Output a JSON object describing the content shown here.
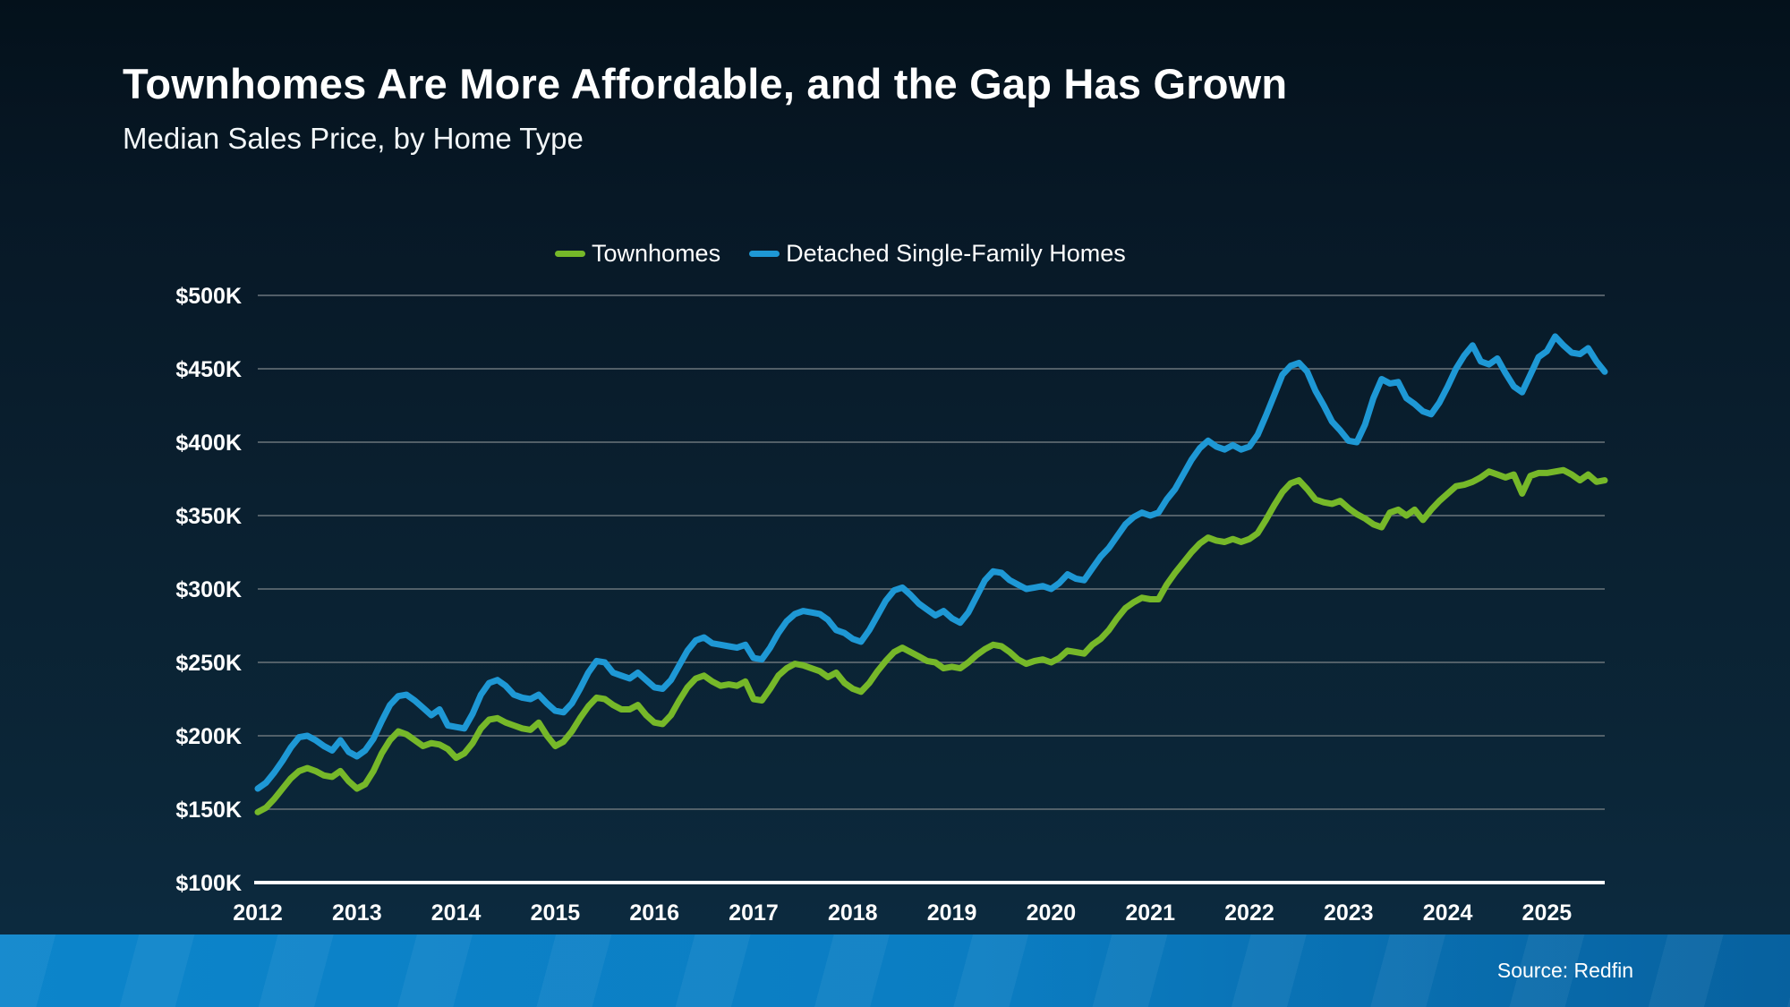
{
  "title": "Townhomes Are More Affordable, and the Gap Has Grown",
  "subtitle": "Median Sales Price, by Home Type",
  "source": "Source: Redfin",
  "colors": {
    "townhomes_green": "#76b829",
    "detached_blue": "#1e98d5",
    "gridline": "#5f6b72",
    "axis_line": "#ffffff",
    "text": "#ffffff",
    "bottom_bar_left": "#0c85cb",
    "bottom_bar_right": "#07619f"
  },
  "legend": {
    "items": [
      {
        "label": "Townhomes",
        "color": "#76b829"
      },
      {
        "label": "Detached Single-Family Homes",
        "color": "#1e98d5"
      }
    ]
  },
  "chart_data": {
    "type": "line",
    "title": "Median Sales Price, by Home Type",
    "frequency": "monthly",
    "x_start": "2012-01",
    "x_end": "2025-08",
    "x_tick_labels": [
      "2012",
      "2013",
      "2014",
      "2015",
      "2016",
      "2017",
      "2018",
      "2019",
      "2020",
      "2021",
      "2022",
      "2023",
      "2024",
      "2025"
    ],
    "y_tick_labels": [
      "$500K",
      "$450K",
      "$400K",
      "$350K",
      "$300K",
      "$250K",
      "$200K",
      "$150K",
      "$100K"
    ],
    "y_tick_values": [
      500,
      450,
      400,
      350,
      300,
      250,
      200,
      150,
      100
    ],
    "ylim": [
      100,
      500
    ],
    "grid": true,
    "legend_position": "top-center",
    "units": "thousands of USD",
    "series": [
      {
        "name": "Townhomes",
        "color": "#76b829",
        "values": [
          148,
          151,
          157,
          164,
          171,
          176,
          178,
          176,
          173,
          172,
          176,
          169,
          164,
          167,
          176,
          188,
          197,
          203,
          201,
          197,
          193,
          195,
          194,
          191,
          185,
          188,
          195,
          205,
          211,
          212,
          209,
          207,
          205,
          204,
          209,
          200,
          193,
          196,
          203,
          212,
          220,
          226,
          225,
          221,
          218,
          218,
          221,
          214,
          209,
          208,
          214,
          224,
          233,
          239,
          241,
          237,
          234,
          235,
          234,
          237,
          225,
          224,
          232,
          241,
          246,
          249,
          248,
          246,
          244,
          240,
          243,
          236,
          232,
          230,
          236,
          244,
          251,
          257,
          260,
          257,
          254,
          251,
          250,
          246,
          247,
          246,
          250,
          255,
          259,
          262,
          261,
          257,
          252,
          249,
          251,
          252,
          250,
          253,
          258,
          257,
          256,
          262,
          266,
          272,
          280,
          287,
          291,
          294,
          293,
          293,
          303,
          311,
          318,
          325,
          331,
          335,
          333,
          332,
          334,
          332,
          334,
          338,
          347,
          357,
          366,
          372,
          374,
          368,
          361,
          359,
          358,
          360,
          355,
          351,
          348,
          344,
          342,
          352,
          354,
          350,
          354,
          347,
          354,
          360,
          365,
          370,
          371,
          373,
          376,
          380,
          378,
          376,
          378,
          365,
          377,
          379,
          379,
          380,
          381,
          378,
          374,
          378,
          373,
          374
        ]
      },
      {
        "name": "Detached Single-Family Homes",
        "color": "#1e98d5",
        "values": [
          164,
          168,
          175,
          183,
          192,
          199,
          200,
          197,
          193,
          190,
          197,
          189,
          186,
          190,
          198,
          210,
          221,
          227,
          228,
          224,
          219,
          214,
          218,
          207,
          206,
          205,
          215,
          228,
          236,
          238,
          234,
          228,
          226,
          225,
          228,
          222,
          217,
          216,
          222,
          232,
          243,
          251,
          250,
          243,
          241,
          239,
          243,
          238,
          233,
          232,
          238,
          248,
          258,
          265,
          267,
          263,
          262,
          261,
          260,
          262,
          253,
          252,
          260,
          270,
          278,
          283,
          285,
          284,
          283,
          279,
          272,
          270,
          266,
          264,
          272,
          282,
          292,
          299,
          301,
          296,
          290,
          286,
          282,
          285,
          280,
          277,
          284,
          295,
          306,
          312,
          311,
          306,
          303,
          300,
          301,
          302,
          300,
          304,
          310,
          307,
          306,
          314,
          322,
          328,
          336,
          344,
          349,
          352,
          350,
          352,
          361,
          368,
          378,
          388,
          396,
          401,
          397,
          395,
          398,
          395,
          397,
          405,
          418,
          432,
          446,
          452,
          454,
          448,
          435,
          425,
          414,
          408,
          401,
          400,
          412,
          430,
          443,
          440,
          441,
          430,
          426,
          421,
          419,
          427,
          438,
          450,
          459,
          466,
          455,
          453,
          457,
          447,
          438,
          434,
          446,
          458,
          462,
          472,
          466,
          461,
          460,
          464,
          455,
          448
        ]
      }
    ]
  }
}
